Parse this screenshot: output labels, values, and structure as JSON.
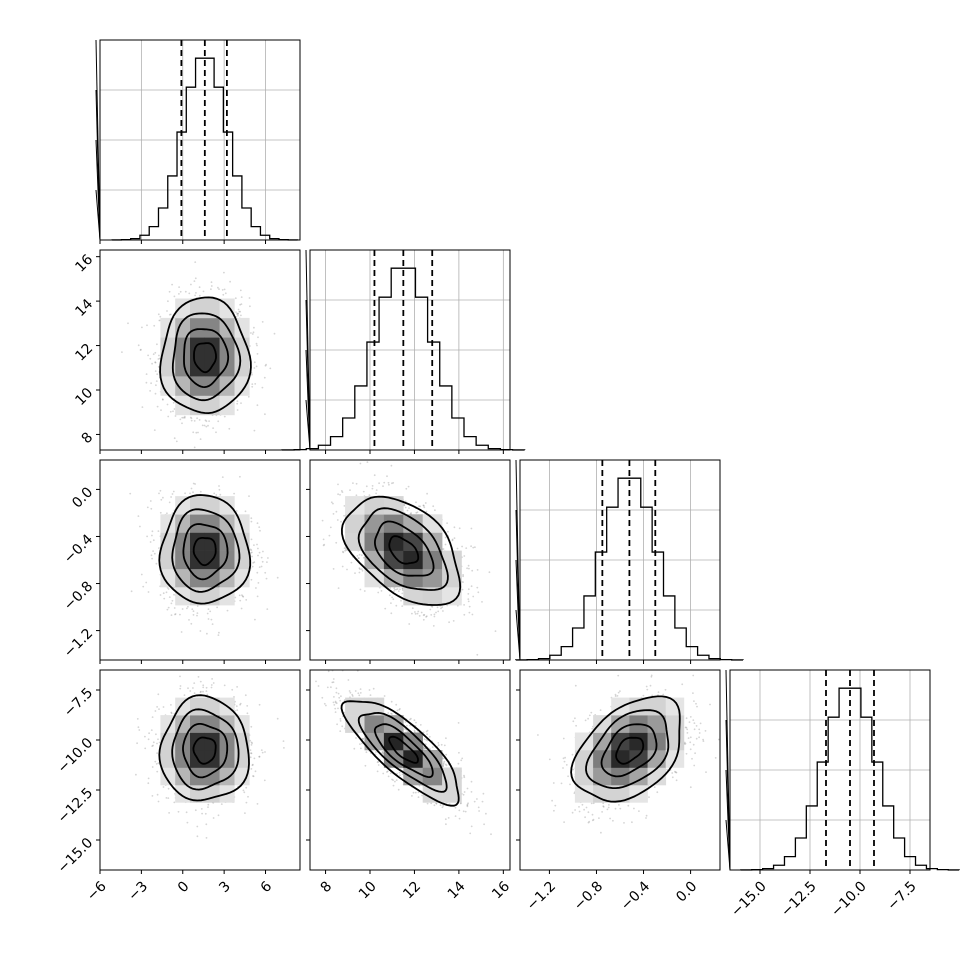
{
  "chart_data": {
    "type": "corner",
    "title": "",
    "grid": true,
    "parameters": [
      {
        "index": 0,
        "label": "",
        "mean": 1.6,
        "std": 1.6,
        "quantiles": [
          -0.1,
          1.6,
          3.2
        ],
        "range": [
          -6,
          8.5
        ],
        "ticks": [
          -6,
          -3,
          0,
          3,
          6
        ],
        "tick_labels": [
          "−6",
          "−3",
          "0",
          "3",
          "6"
        ]
      },
      {
        "index": 1,
        "label": "",
        "mean": 11.5,
        "std": 1.3,
        "quantiles": [
          10.2,
          11.5,
          12.8
        ],
        "range": [
          7.3,
          16.3
        ],
        "ticks": [
          8,
          10,
          12,
          14,
          16
        ],
        "tick_labels": [
          "8",
          "10",
          "12",
          "14",
          "16"
        ]
      },
      {
        "index": 2,
        "label": "",
        "mean": -0.52,
        "std": 0.23,
        "quantiles": [
          -0.75,
          -0.52,
          -0.3
        ],
        "range": [
          -1.45,
          0.25
        ],
        "ticks": [
          -1.2,
          -0.8,
          -0.4,
          0.0
        ],
        "tick_labels": [
          "−1.2",
          "−0.8",
          "−0.4",
          "0.0"
        ]
      },
      {
        "index": 3,
        "label": "",
        "mean": -10.5,
        "std": 1.3,
        "quantiles": [
          -11.7,
          -10.5,
          -9.3
        ],
        "range": [
          -16.5,
          -6.5
        ],
        "ticks": [
          -15.0,
          -12.5,
          -10.0,
          -7.5
        ],
        "tick_labels": [
          "−15.0",
          "−12.5",
          "−10.0",
          "−7.5"
        ]
      }
    ],
    "pair_correlations": [
      {
        "x": 0,
        "y": 1,
        "rho": 0.0
      },
      {
        "x": 0,
        "y": 2,
        "rho": 0.0
      },
      {
        "x": 1,
        "y": 2,
        "rho": -0.45
      },
      {
        "x": 0,
        "y": 3,
        "rho": 0.0
      },
      {
        "x": 1,
        "y": 3,
        "rho": -0.8
      },
      {
        "x": 2,
        "y": 3,
        "rho": 0.4
      }
    ],
    "contour_sigma_levels": [
      0.5,
      1.0,
      1.5,
      2.0
    ],
    "histogram_bins": 20
  }
}
